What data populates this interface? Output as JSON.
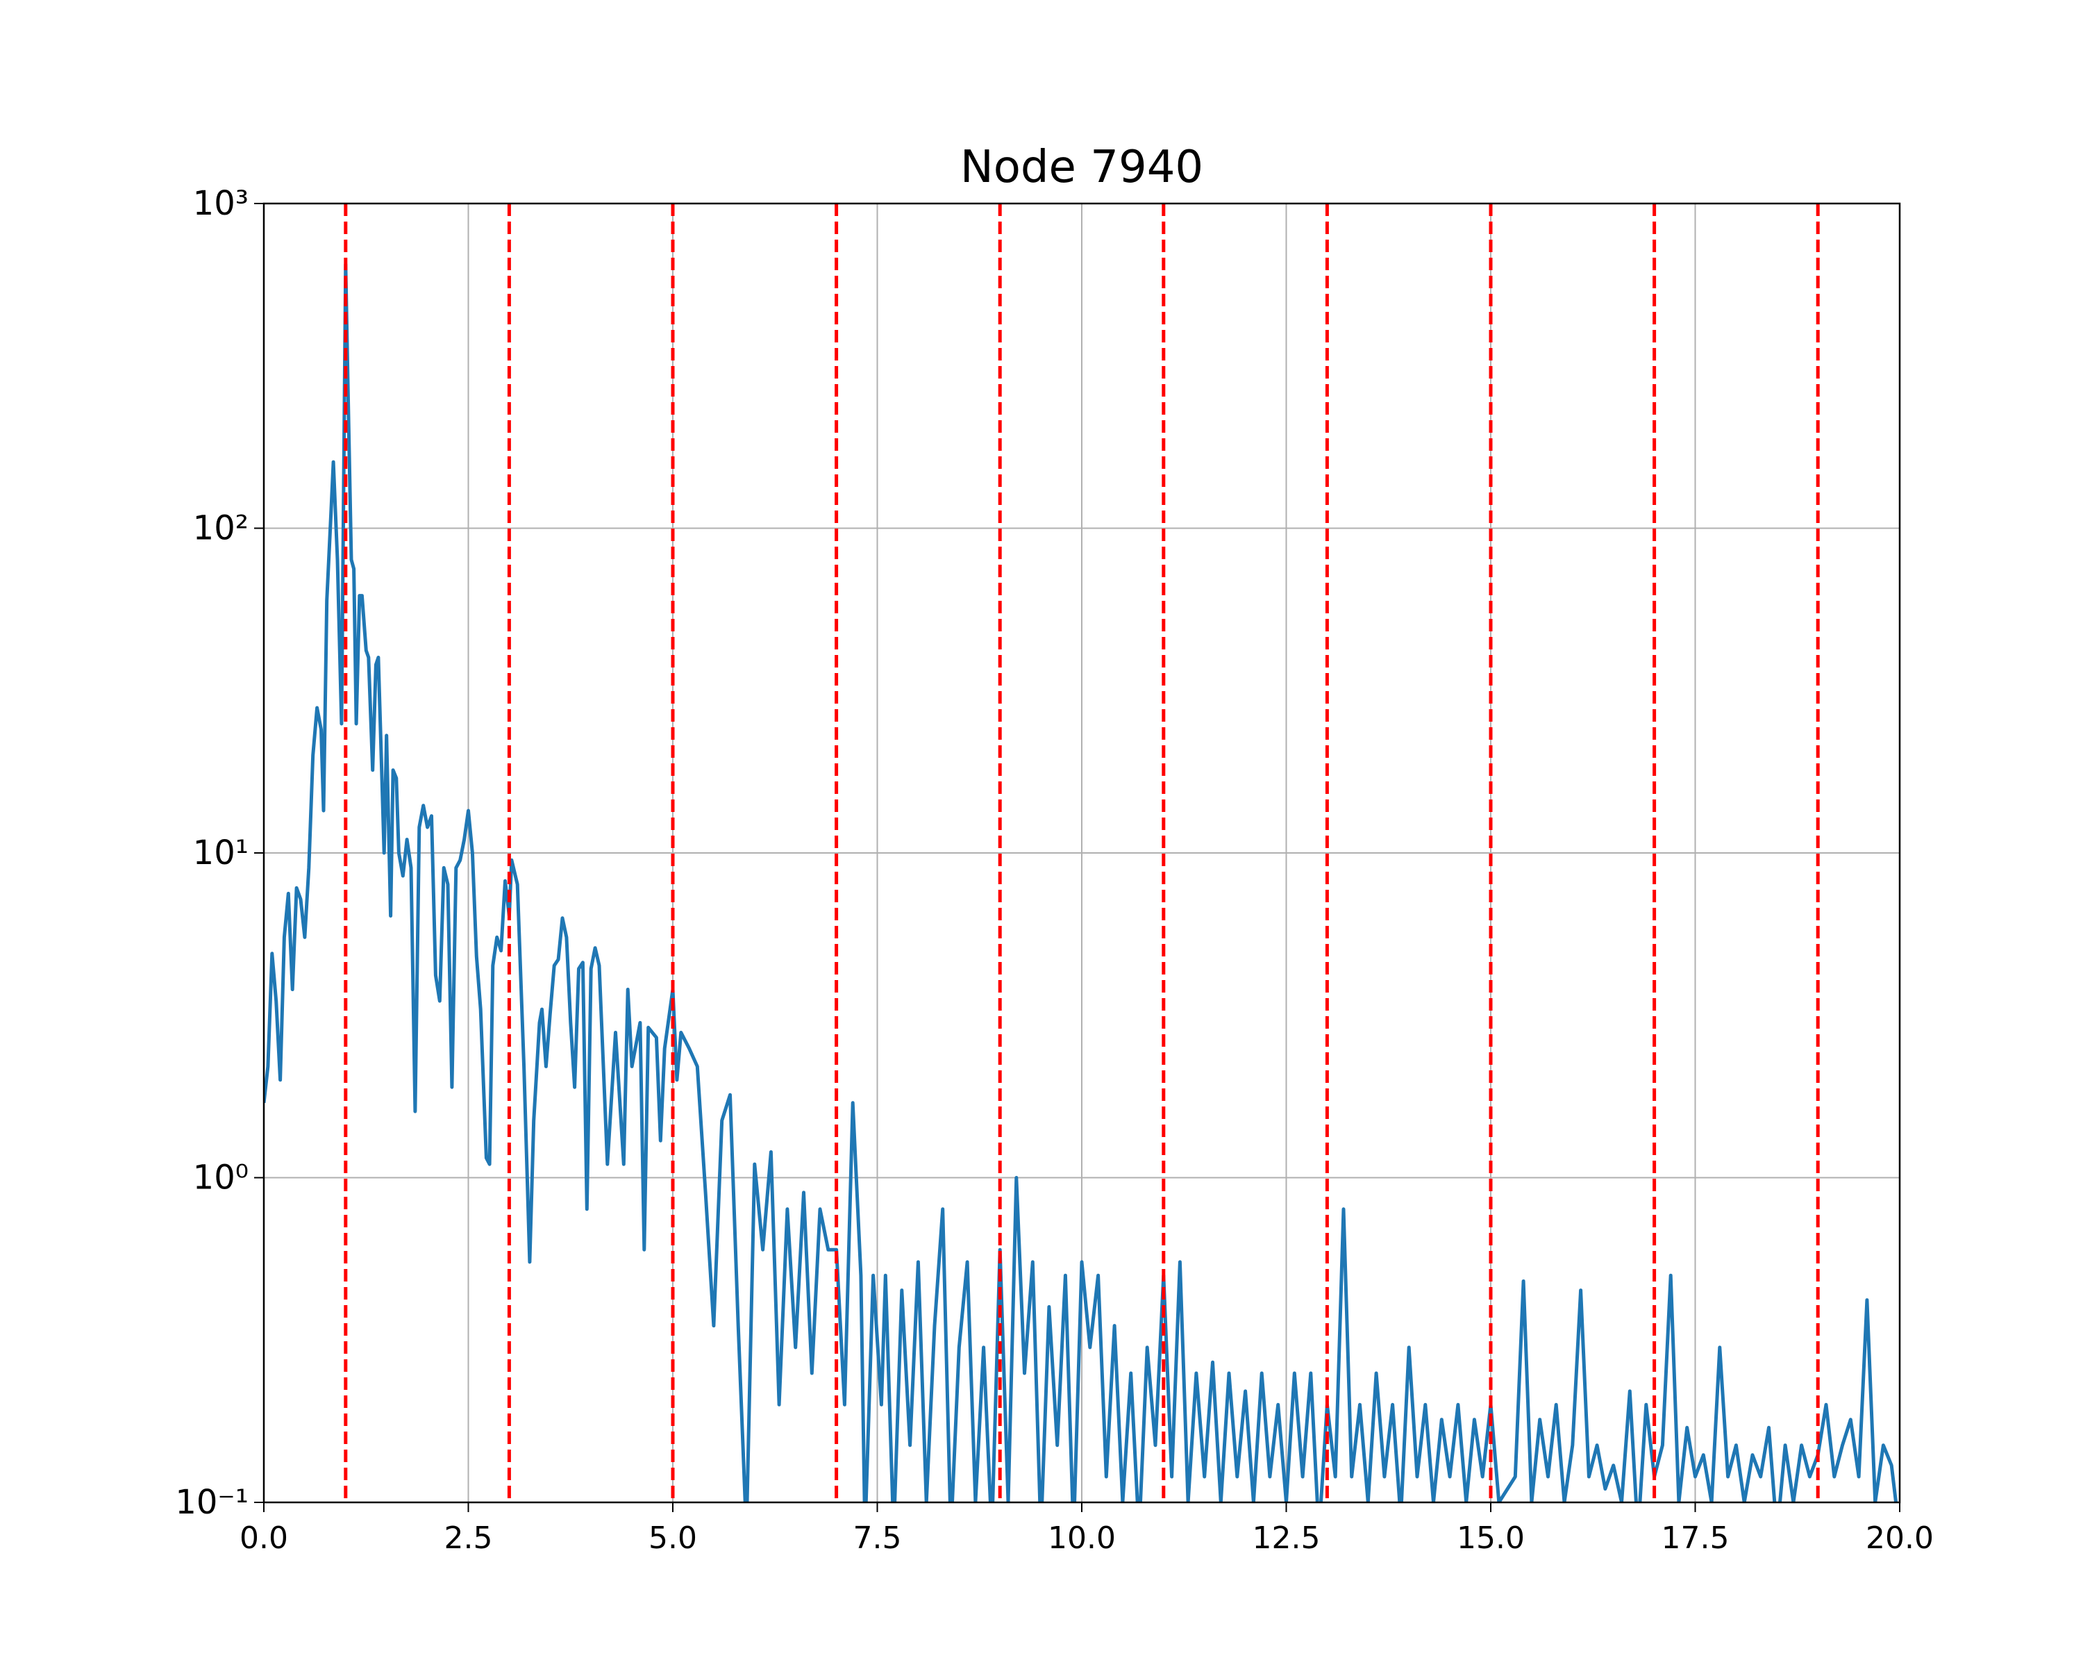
{
  "chart_data": {
    "type": "line",
    "title": "Node 7940",
    "x": [
      0.0,
      0.05,
      0.1,
      0.15,
      0.2,
      0.25,
      0.3,
      0.35,
      0.4,
      0.45,
      0.5,
      0.55,
      0.6,
      0.65,
      0.7,
      0.73,
      0.77,
      0.82,
      0.85,
      0.9,
      0.95,
      1.0,
      1.03,
      1.07,
      1.1,
      1.13,
      1.17,
      1.2,
      1.25,
      1.28,
      1.33,
      1.37,
      1.4,
      1.43,
      1.47,
      1.5,
      1.55,
      1.58,
      1.62,
      1.65,
      1.7,
      1.75,
      1.8,
      1.85,
      1.9,
      1.95,
      2.0,
      2.05,
      2.1,
      2.15,
      2.2,
      2.25,
      2.3,
      2.35,
      2.4,
      2.45,
      2.5,
      2.55,
      2.6,
      2.65,
      2.72,
      2.76,
      2.8,
      2.85,
      2.9,
      2.95,
      3.0,
      3.03,
      3.1,
      3.18,
      3.25,
      3.3,
      3.37,
      3.4,
      3.45,
      3.5,
      3.55,
      3.6,
      3.65,
      3.7,
      3.75,
      3.8,
      3.85,
      3.9,
      3.95,
      4.0,
      4.05,
      4.1,
      4.2,
      4.3,
      4.4,
      4.45,
      4.5,
      4.6,
      4.65,
      4.7,
      4.8,
      4.85,
      4.9,
      5.0,
      5.05,
      5.1,
      5.2,
      5.3,
      5.4,
      5.5,
      5.6,
      5.7,
      5.8,
      5.9,
      6.0,
      6.1,
      6.2,
      6.3,
      6.4,
      6.5,
      6.6,
      6.7,
      6.8,
      6.9,
      7.0,
      7.1,
      7.2,
      7.3,
      7.35,
      7.45,
      7.55,
      7.6,
      7.7,
      7.8,
      7.9,
      8.0,
      8.1,
      8.2,
      8.3,
      8.4,
      8.5,
      8.6,
      8.7,
      8.8,
      8.9,
      9.0,
      9.1,
      9.2,
      9.3,
      9.4,
      9.5,
      9.6,
      9.7,
      9.8,
      9.9,
      10.0,
      10.1,
      10.2,
      10.3,
      10.4,
      10.5,
      10.6,
      10.7,
      10.8,
      10.9,
      11.0,
      11.1,
      11.2,
      11.3,
      11.4,
      11.5,
      11.6,
      11.7,
      11.8,
      11.9,
      12.0,
      12.1,
      12.2,
      12.3,
      12.4,
      12.5,
      12.6,
      12.7,
      12.8,
      12.9,
      13.0,
      13.1,
      13.2,
      13.3,
      13.4,
      13.5,
      13.6,
      13.7,
      13.8,
      13.9,
      14.0,
      14.1,
      14.2,
      14.3,
      14.4,
      14.5,
      14.6,
      14.7,
      14.8,
      14.9,
      15.0,
      15.1,
      15.3,
      15.4,
      15.5,
      15.6,
      15.7,
      15.8,
      15.9,
      16.0,
      16.1,
      16.2,
      16.3,
      16.4,
      16.5,
      16.6,
      16.7,
      16.8,
      16.9,
      17.0,
      17.1,
      17.2,
      17.3,
      17.4,
      17.5,
      17.6,
      17.7,
      17.8,
      17.9,
      18.0,
      18.1,
      18.2,
      18.3,
      18.4,
      18.5,
      18.6,
      18.7,
      18.8,
      18.9,
      19.0,
      19.1,
      19.2,
      19.3,
      19.4,
      19.5,
      19.6,
      19.7,
      19.8,
      19.9,
      20.0
    ],
    "values": [
      1.7,
      2.2,
      4.9,
      3.5,
      2.0,
      5.5,
      7.5,
      3.8,
      7.8,
      7.2,
      5.5,
      9,
      20,
      28,
      24,
      13.5,
      60,
      110,
      160,
      80,
      25,
      650,
      260,
      80,
      75,
      25,
      62,
      62,
      42,
      40,
      18,
      38,
      40,
      22,
      10,
      23,
      6.4,
      18,
      17,
      10,
      8.5,
      11,
      9,
      1.6,
      12,
      14,
      12,
      13,
      4.2,
      3.5,
      9,
      8,
      1.9,
      9,
      9.5,
      11,
      13.5,
      10,
      4.8,
      3.3,
      1.15,
      1.1,
      4.5,
      5.5,
      5,
      8.2,
      6.4,
      9.5,
      8,
      2.2,
      0.55,
      1.5,
      3,
      3.3,
      2.2,
      3.2,
      4.5,
      4.7,
      6.3,
      5.5,
      3,
      1.9,
      4.4,
      4.6,
      0.8,
      4.4,
      5.1,
      4.5,
      1.1,
      2.8,
      1.1,
      3.8,
      2.2,
      3,
      0.6,
      2.9,
      2.7,
      1.3,
      2.5,
      3.8,
      2,
      2.8,
      2.5,
      2.2,
      0.9,
      0.35,
      1.5,
      1.8,
      0.35,
      0.08,
      1.1,
      0.6,
      1.2,
      0.2,
      0.8,
      0.3,
      0.9,
      0.25,
      0.8,
      0.6,
      0.6,
      0.2,
      1.7,
      0.5,
      0.08,
      0.5,
      0.2,
      0.5,
      0.08,
      0.45,
      0.15,
      0.55,
      0.1,
      0.35,
      0.8,
      0.08,
      0.3,
      0.55,
      0.1,
      0.3,
      0.08,
      0.6,
      0.1,
      1.0,
      0.25,
      0.55,
      0.08,
      0.4,
      0.15,
      0.5,
      0.08,
      0.55,
      0.3,
      0.5,
      0.12,
      0.35,
      0.1,
      0.25,
      0.08,
      0.3,
      0.15,
      0.5,
      0.12,
      0.55,
      0.1,
      0.25,
      0.12,
      0.27,
      0.1,
      0.25,
      0.12,
      0.22,
      0.1,
      0.25,
      0.12,
      0.2,
      0.1,
      0.25,
      0.12,
      0.25,
      0.08,
      0.2,
      0.12,
      0.8,
      0.12,
      0.2,
      0.1,
      0.25,
      0.12,
      0.2,
      0.09,
      0.3,
      0.12,
      0.2,
      0.1,
      0.18,
      0.12,
      0.2,
      0.1,
      0.18,
      0.12,
      0.2,
      0.1,
      0.12,
      0.48,
      0.1,
      0.18,
      0.12,
      0.2,
      0.1,
      0.15,
      0.45,
      0.12,
      0.15,
      0.11,
      0.13,
      0.1,
      0.22,
      0.08,
      0.2,
      0.12,
      0.15,
      0.5,
      0.1,
      0.17,
      0.12,
      0.14,
      0.1,
      0.3,
      0.12,
      0.15,
      0.1,
      0.14,
      0.12,
      0.17,
      0.08,
      0.15,
      0.1,
      0.15,
      0.12,
      0.14,
      0.2,
      0.12,
      0.15,
      0.18,
      0.12,
      0.42,
      0.1,
      0.15,
      0.13,
      0.08
    ],
    "color": "#1f77b4",
    "xlim": [
      0,
      20
    ],
    "xticks": [
      {
        "value": 0,
        "label": "0.0"
      },
      2.5,
      {
        "value": 5,
        "label": "5.0"
      },
      7.5,
      {
        "value": 10,
        "label": "10.0"
      },
      12.5,
      {
        "value": 15,
        "label": "15.0"
      },
      17.5,
      {
        "value": 20,
        "label": "20.0"
      }
    ],
    "ylim": [
      0.1,
      1000
    ],
    "yticks": [
      {
        "value": 0.1,
        "label": "10⁻¹"
      },
      {
        "value": 1,
        "label": "10⁰"
      },
      {
        "value": 10,
        "label": "10¹"
      },
      {
        "value": 100,
        "label": "10²"
      },
      {
        "value": 1000,
        "label": "10³"
      }
    ],
    "log_y": true,
    "grid": true,
    "vlines": [
      1,
      3,
      5,
      7,
      9,
      11,
      13,
      15,
      17,
      19
    ],
    "vline_color": "#ff0000"
  }
}
